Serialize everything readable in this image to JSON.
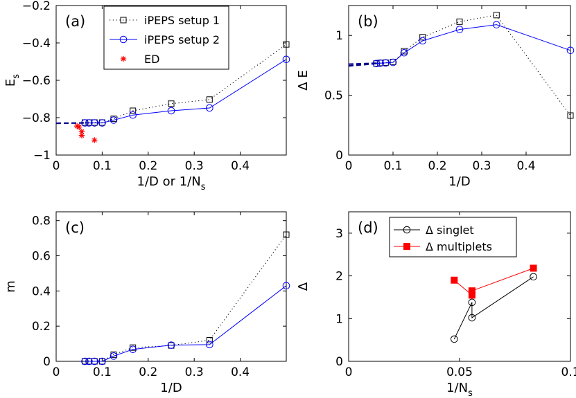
{
  "chart_data": [
    {
      "panel": "(a)",
      "type": "line",
      "xlabel": "1/D or 1/N",
      "xlabel_sub": "s",
      "ylabel": "E",
      "ylabel_sub": "s",
      "xlim": [
        0,
        0.5
      ],
      "ylim": [
        -1,
        -0.2
      ],
      "xticks": [
        0,
        0.1,
        0.2,
        0.3,
        0.4
      ],
      "xtick_labels": [
        "0",
        "0.1",
        "0.2",
        "0.3",
        "0.4"
      ],
      "yticks": [
        -1,
        -0.8,
        -0.6,
        -0.4,
        -0.2
      ],
      "ytick_labels": [
        "−1",
        "−0.8",
        "−0.6",
        "−0.4",
        "−0.2"
      ],
      "legend_position": "top-left",
      "series": [
        {
          "name": "iPEPS setup 1",
          "color": "#000000",
          "line": "dotted",
          "marker": "square",
          "x": [
            0.0625,
            0.0714,
            0.0833,
            0.1,
            0.125,
            0.1667,
            0.25,
            0.3333,
            0.5
          ],
          "y": [
            -0.826,
            -0.826,
            -0.826,
            -0.826,
            -0.806,
            -0.763,
            -0.725,
            -0.703,
            -0.408
          ]
        },
        {
          "name": "iPEPS setup 2",
          "color": "#0000ff",
          "line": "solid",
          "marker": "circle",
          "x": [
            0.0625,
            0.0714,
            0.0833,
            0.1,
            0.125,
            0.1667,
            0.25,
            0.3333,
            0.5
          ],
          "y": [
            -0.828,
            -0.828,
            -0.828,
            -0.828,
            -0.813,
            -0.786,
            -0.763,
            -0.748,
            -0.488
          ]
        },
        {
          "name": "ED",
          "color": "#ff0000",
          "line": "none",
          "marker": "star",
          "x": [
            0.0455,
            0.05,
            0.0556,
            0.0556,
            0.0833
          ],
          "y": [
            -0.845,
            -0.85,
            -0.875,
            -0.895,
            -0.92
          ]
        }
      ],
      "extrapolation": {
        "color": "#00008b",
        "x": [
          0,
          0.0625
        ],
        "y": [
          -0.83,
          -0.828
        ]
      }
    },
    {
      "panel": "(b)",
      "type": "line",
      "xlabel": "1/D",
      "ylabel": "Δ E",
      "xlim": [
        0,
        0.5
      ],
      "ylim": [
        0,
        1.25
      ],
      "xticks": [
        0,
        0.1,
        0.2,
        0.3,
        0.4
      ],
      "xtick_labels": [
        "0",
        "0.1",
        "0.2",
        "0.3",
        "0.4"
      ],
      "yticks": [
        0,
        0.5,
        1
      ],
      "ytick_labels": [
        "0",
        "0.5",
        "1"
      ],
      "series": [
        {
          "name": "iPEPS setup 1",
          "color": "#000000",
          "line": "dotted",
          "marker": "square",
          "x": [
            0.0625,
            0.0714,
            0.0833,
            0.1,
            0.125,
            0.1667,
            0.25,
            0.3333,
            0.5
          ],
          "y": [
            0.765,
            0.77,
            0.772,
            0.778,
            0.868,
            0.985,
            1.115,
            1.17,
            0.33
          ]
        },
        {
          "name": "iPEPS setup 2",
          "color": "#0000ff",
          "line": "solid",
          "marker": "circle",
          "x": [
            0.0625,
            0.0714,
            0.0833,
            0.1,
            0.125,
            0.1667,
            0.25,
            0.3333,
            0.5
          ],
          "y": [
            0.765,
            0.768,
            0.77,
            0.775,
            0.855,
            0.955,
            1.05,
            1.09,
            0.875
          ]
        }
      ],
      "extrapolations": [
        {
          "color": "#00008b",
          "x": [
            0,
            0.0625
          ],
          "y": [
            0.745,
            0.765
          ]
        },
        {
          "color": "#00008b",
          "x": [
            0,
            0.0625
          ],
          "y": [
            0.76,
            0.768
          ]
        }
      ]
    },
    {
      "panel": "(c)",
      "type": "line",
      "xlabel": "1/D",
      "ylabel": "m",
      "xlim": [
        0,
        0.5
      ],
      "ylim": [
        0,
        0.85
      ],
      "xticks": [
        0,
        0.1,
        0.2,
        0.3,
        0.4
      ],
      "xtick_labels": [
        "0",
        "0.1",
        "0.2",
        "0.3",
        "0.4"
      ],
      "yticks": [
        0,
        0.2,
        0.4,
        0.6,
        0.8
      ],
      "ytick_labels": [
        "0",
        "0.2",
        "0.4",
        "0.6",
        "0.8"
      ],
      "series": [
        {
          "name": "iPEPS setup 1",
          "color": "#000000",
          "line": "dotted",
          "marker": "square",
          "x": [
            0.0625,
            0.0714,
            0.0833,
            0.1,
            0.125,
            0.1667,
            0.25,
            0.3333,
            0.5
          ],
          "y": [
            0,
            0,
            0,
            0,
            0.038,
            0.078,
            0.09,
            0.12,
            0.72
          ]
        },
        {
          "name": "iPEPS setup 2",
          "color": "#0000ff",
          "line": "solid",
          "marker": "circle",
          "x": [
            0.0625,
            0.0714,
            0.0833,
            0.1,
            0.125,
            0.1667,
            0.25,
            0.3333,
            0.5
          ],
          "y": [
            0,
            0,
            0,
            0,
            0.03,
            0.068,
            0.092,
            0.095,
            0.43
          ]
        }
      ]
    },
    {
      "panel": "(d)",
      "type": "line",
      "xlabel": "1/N",
      "xlabel_sub": "s",
      "ylabel": "Δ",
      "xlim": [
        0,
        0.1
      ],
      "ylim": [
        0,
        3.5
      ],
      "xticks": [
        0,
        0.05,
        0.1
      ],
      "xtick_labels": [
        "0",
        "0.05",
        "0.1"
      ],
      "yticks": [
        0,
        1,
        2,
        3
      ],
      "ytick_labels": [
        "0",
        "1",
        "2",
        "3"
      ],
      "legend_position": "top-left",
      "series": [
        {
          "name": "Δ singlet",
          "color": "#000000",
          "line": "solid",
          "marker": "circle",
          "x": [
            0.0476,
            0.0556,
            0.0556,
            0.0833
          ],
          "y": [
            0.52,
            1.38,
            1.02,
            1.98
          ]
        },
        {
          "name": "Δ multiplets",
          "color": "#ff0000",
          "line": "solid",
          "marker": "filled-square",
          "x": [
            0.0476,
            0.0556,
            0.0556,
            0.0833
          ],
          "y": [
            1.9,
            1.55,
            1.65,
            2.18
          ]
        }
      ]
    }
  ]
}
